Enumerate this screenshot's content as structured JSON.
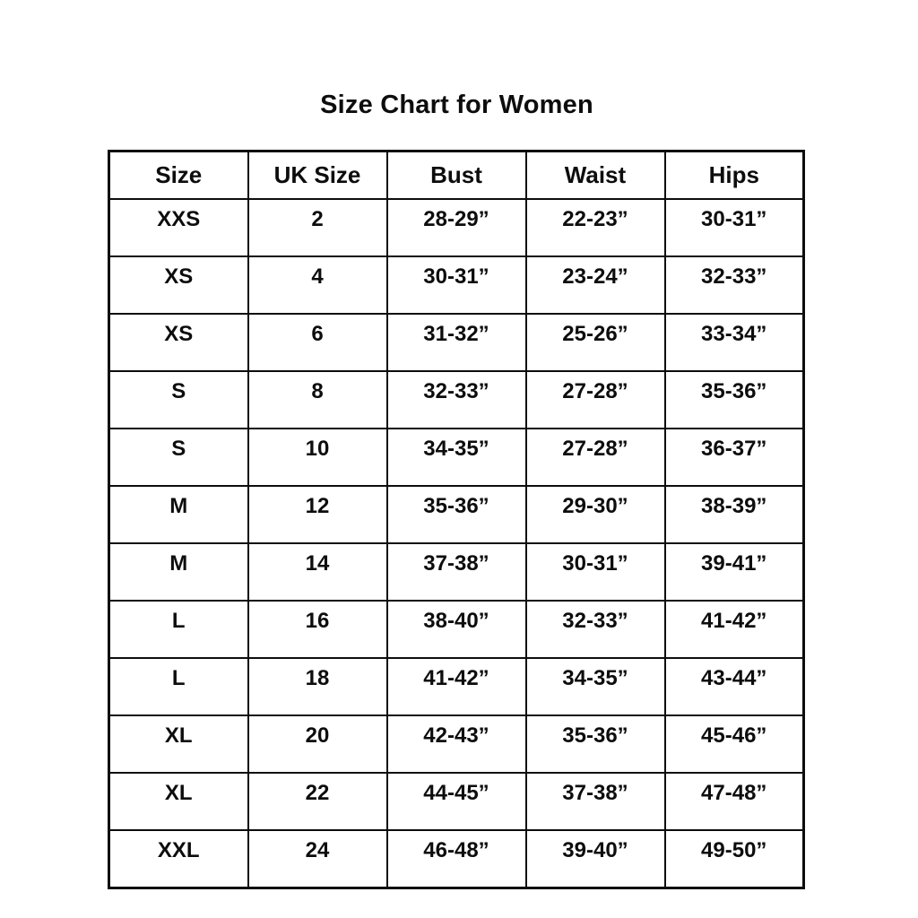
{
  "page": {
    "background": "#ffffff"
  },
  "colors": {
    "text": "#0d0d0d",
    "border": "#0d0d0d",
    "background": "#ffffff"
  },
  "chart_data": {
    "type": "table",
    "title": "Size Chart for Women",
    "columns": [
      "Size",
      "UK Size",
      "Bust",
      "Waist",
      "Hips"
    ],
    "rows": [
      [
        "XXS",
        "2",
        "28-29”",
        "22-23”",
        "30-31”"
      ],
      [
        "XS",
        "4",
        "30-31”",
        "23-24”",
        "32-33”"
      ],
      [
        "XS",
        "6",
        "31-32”",
        "25-26”",
        "33-34”"
      ],
      [
        "S",
        "8",
        "32-33”",
        "27-28”",
        "35-36”"
      ],
      [
        "S",
        "10",
        "34-35”",
        "27-28”",
        "36-37”"
      ],
      [
        "M",
        "12",
        "35-36”",
        "29-30”",
        "38-39”"
      ],
      [
        "M",
        "14",
        "37-38”",
        "30-31”",
        "39-41”"
      ],
      [
        "L",
        "16",
        "38-40”",
        "32-33”",
        "41-42”"
      ],
      [
        "L",
        "18",
        "41-42”",
        "34-35”",
        "43-44”"
      ],
      [
        "XL",
        "20",
        "42-43”",
        "35-36”",
        "45-46”"
      ],
      [
        "XL",
        "22",
        "44-45”",
        "37-38”",
        "47-48”"
      ],
      [
        "XXL",
        "24",
        "46-48”",
        "39-40”",
        "49-50”"
      ]
    ]
  }
}
